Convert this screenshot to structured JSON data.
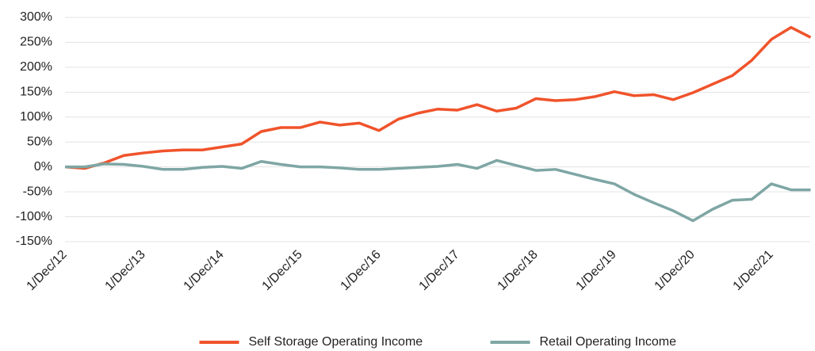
{
  "chart_data": {
    "type": "line",
    "categories": [
      "1/Dec/12",
      null,
      null,
      null,
      "1/Dec/13",
      null,
      null,
      null,
      "1/Dec/14",
      null,
      null,
      null,
      "1/Dec/15",
      null,
      null,
      null,
      "1/Dec/16",
      null,
      null,
      null,
      "1/Dec/17",
      null,
      null,
      null,
      "1/Dec/18",
      null,
      null,
      null,
      "1/Dec/19",
      null,
      null,
      null,
      "1/Dec/20",
      null,
      null,
      null,
      "1/Dec/21",
      null,
      null
    ],
    "series": [
      {
        "name": "Self Storage Operating Income",
        "color": "#f0532b",
        "values": [
          0,
          -3,
          8,
          23,
          28,
          32,
          34,
          34,
          40,
          46,
          71,
          79,
          79,
          90,
          84,
          88,
          73,
          96,
          108,
          116,
          114,
          125,
          112,
          118,
          137,
          133,
          135,
          141,
          151,
          143,
          145,
          135,
          149,
          166,
          183,
          214,
          256,
          280,
          260
        ]
      },
      {
        "name": "Retail Operating Income",
        "color": "#7ea6a4",
        "values": [
          0,
          0,
          6,
          5,
          1,
          -5,
          -5,
          -1,
          1,
          -3,
          11,
          5,
          0,
          0,
          -2,
          -5,
          -5,
          -3,
          -1,
          1,
          5,
          -3,
          13,
          3,
          -7,
          -5,
          -15,
          -25,
          -34,
          -55,
          -72,
          -88,
          -108,
          -85,
          -67,
          -65,
          -34,
          -46,
          -46
        ]
      }
    ],
    "ylim": [
      -150,
      300
    ],
    "yticks": [
      {
        "value": -150,
        "label": "-150%"
      },
      {
        "value": -100,
        "label": "-100%"
      },
      {
        "value": -50,
        "label": "-50%"
      },
      {
        "value": 0,
        "label": "0%"
      },
      {
        "value": 50,
        "label": "50%"
      },
      {
        "value": 100,
        "label": "100%"
      },
      {
        "value": 150,
        "label": "150%"
      },
      {
        "value": 200,
        "label": "200%"
      },
      {
        "value": 250,
        "label": "250%"
      },
      {
        "value": 300,
        "label": "300%"
      }
    ],
    "grid": true,
    "legend": "bottom"
  }
}
